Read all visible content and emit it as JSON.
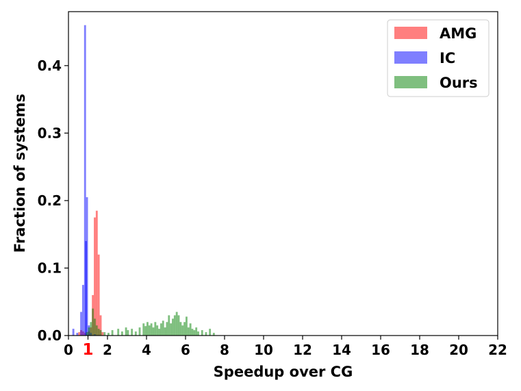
{
  "chart_data": {
    "type": "histogram",
    "xlabel": "Speedup over CG",
    "ylabel": "Fraction of systems",
    "xlim": [
      0,
      22
    ],
    "ylim": [
      0,
      0.48
    ],
    "x_ticks": [
      0,
      1,
      2,
      4,
      6,
      8,
      10,
      12,
      14,
      16,
      18,
      20,
      22
    ],
    "x_tick_labels": [
      "0",
      "1",
      "2",
      "4",
      "6",
      "8",
      "10",
      "12",
      "14",
      "16",
      "18",
      "20",
      "22"
    ],
    "highlighted_x_tick": "1",
    "highlight_color": "#ff0000",
    "y_ticks": [
      0.0,
      0.1,
      0.2,
      0.3,
      0.4
    ],
    "y_tick_labels": [
      "0.0",
      "0.1",
      "0.2",
      "0.3",
      "0.4"
    ],
    "grid": false,
    "legend_position": "top-right",
    "bin_width": 0.1,
    "series": [
      {
        "name": "AMG",
        "color": "#ff0000",
        "alpha": 0.5,
        "bins": [
          [
            0.5,
            0.005
          ],
          [
            0.6,
            0.008
          ],
          [
            0.7,
            0.006
          ],
          [
            0.8,
            0.004
          ],
          [
            1.0,
            0.006
          ],
          [
            1.1,
            0.012
          ],
          [
            1.2,
            0.06
          ],
          [
            1.3,
            0.175
          ],
          [
            1.4,
            0.185
          ],
          [
            1.5,
            0.12
          ],
          [
            1.6,
            0.03
          ],
          [
            1.7,
            0.005
          ]
        ]
      },
      {
        "name": "IC",
        "color": "#0000ff",
        "alpha": 0.5,
        "bins": [
          [
            0.2,
            0.01
          ],
          [
            0.4,
            0.004
          ],
          [
            0.6,
            0.035
          ],
          [
            0.7,
            0.075
          ],
          [
            0.8,
            0.46
          ],
          [
            0.85,
            0.14
          ],
          [
            0.9,
            0.205
          ],
          [
            1.0,
            0.015
          ],
          [
            1.1,
            0.004
          ],
          [
            1.3,
            0.002
          ]
        ]
      },
      {
        "name": "Ours",
        "color": "#008000",
        "alpha": 0.5,
        "bins": [
          [
            0.9,
            0.005
          ],
          [
            1.0,
            0.012
          ],
          [
            1.1,
            0.02
          ],
          [
            1.2,
            0.04
          ],
          [
            1.3,
            0.025
          ],
          [
            1.4,
            0.015
          ],
          [
            1.5,
            0.01
          ],
          [
            1.6,
            0.008
          ],
          [
            1.8,
            0.005
          ],
          [
            2.0,
            0.004
          ],
          [
            2.2,
            0.008
          ],
          [
            2.5,
            0.01
          ],
          [
            2.7,
            0.006
          ],
          [
            2.9,
            0.012
          ],
          [
            3.0,
            0.008
          ],
          [
            3.2,
            0.01
          ],
          [
            3.4,
            0.006
          ],
          [
            3.6,
            0.012
          ],
          [
            3.8,
            0.018
          ],
          [
            3.9,
            0.014
          ],
          [
            4.0,
            0.02
          ],
          [
            4.1,
            0.015
          ],
          [
            4.2,
            0.018
          ],
          [
            4.3,
            0.012
          ],
          [
            4.4,
            0.02
          ],
          [
            4.5,
            0.015
          ],
          [
            4.6,
            0.01
          ],
          [
            4.7,
            0.018
          ],
          [
            4.8,
            0.022
          ],
          [
            4.9,
            0.012
          ],
          [
            5.0,
            0.02
          ],
          [
            5.1,
            0.03
          ],
          [
            5.2,
            0.018
          ],
          [
            5.3,
            0.025
          ],
          [
            5.4,
            0.03
          ],
          [
            5.5,
            0.035
          ],
          [
            5.6,
            0.03
          ],
          [
            5.7,
            0.02
          ],
          [
            5.8,
            0.015
          ],
          [
            5.9,
            0.02
          ],
          [
            6.0,
            0.028
          ],
          [
            6.1,
            0.012
          ],
          [
            6.2,
            0.018
          ],
          [
            6.3,
            0.01
          ],
          [
            6.4,
            0.008
          ],
          [
            6.5,
            0.012
          ],
          [
            6.6,
            0.006
          ],
          [
            6.8,
            0.008
          ],
          [
            7.0,
            0.005
          ],
          [
            7.2,
            0.01
          ],
          [
            7.4,
            0.004
          ]
        ]
      }
    ]
  }
}
